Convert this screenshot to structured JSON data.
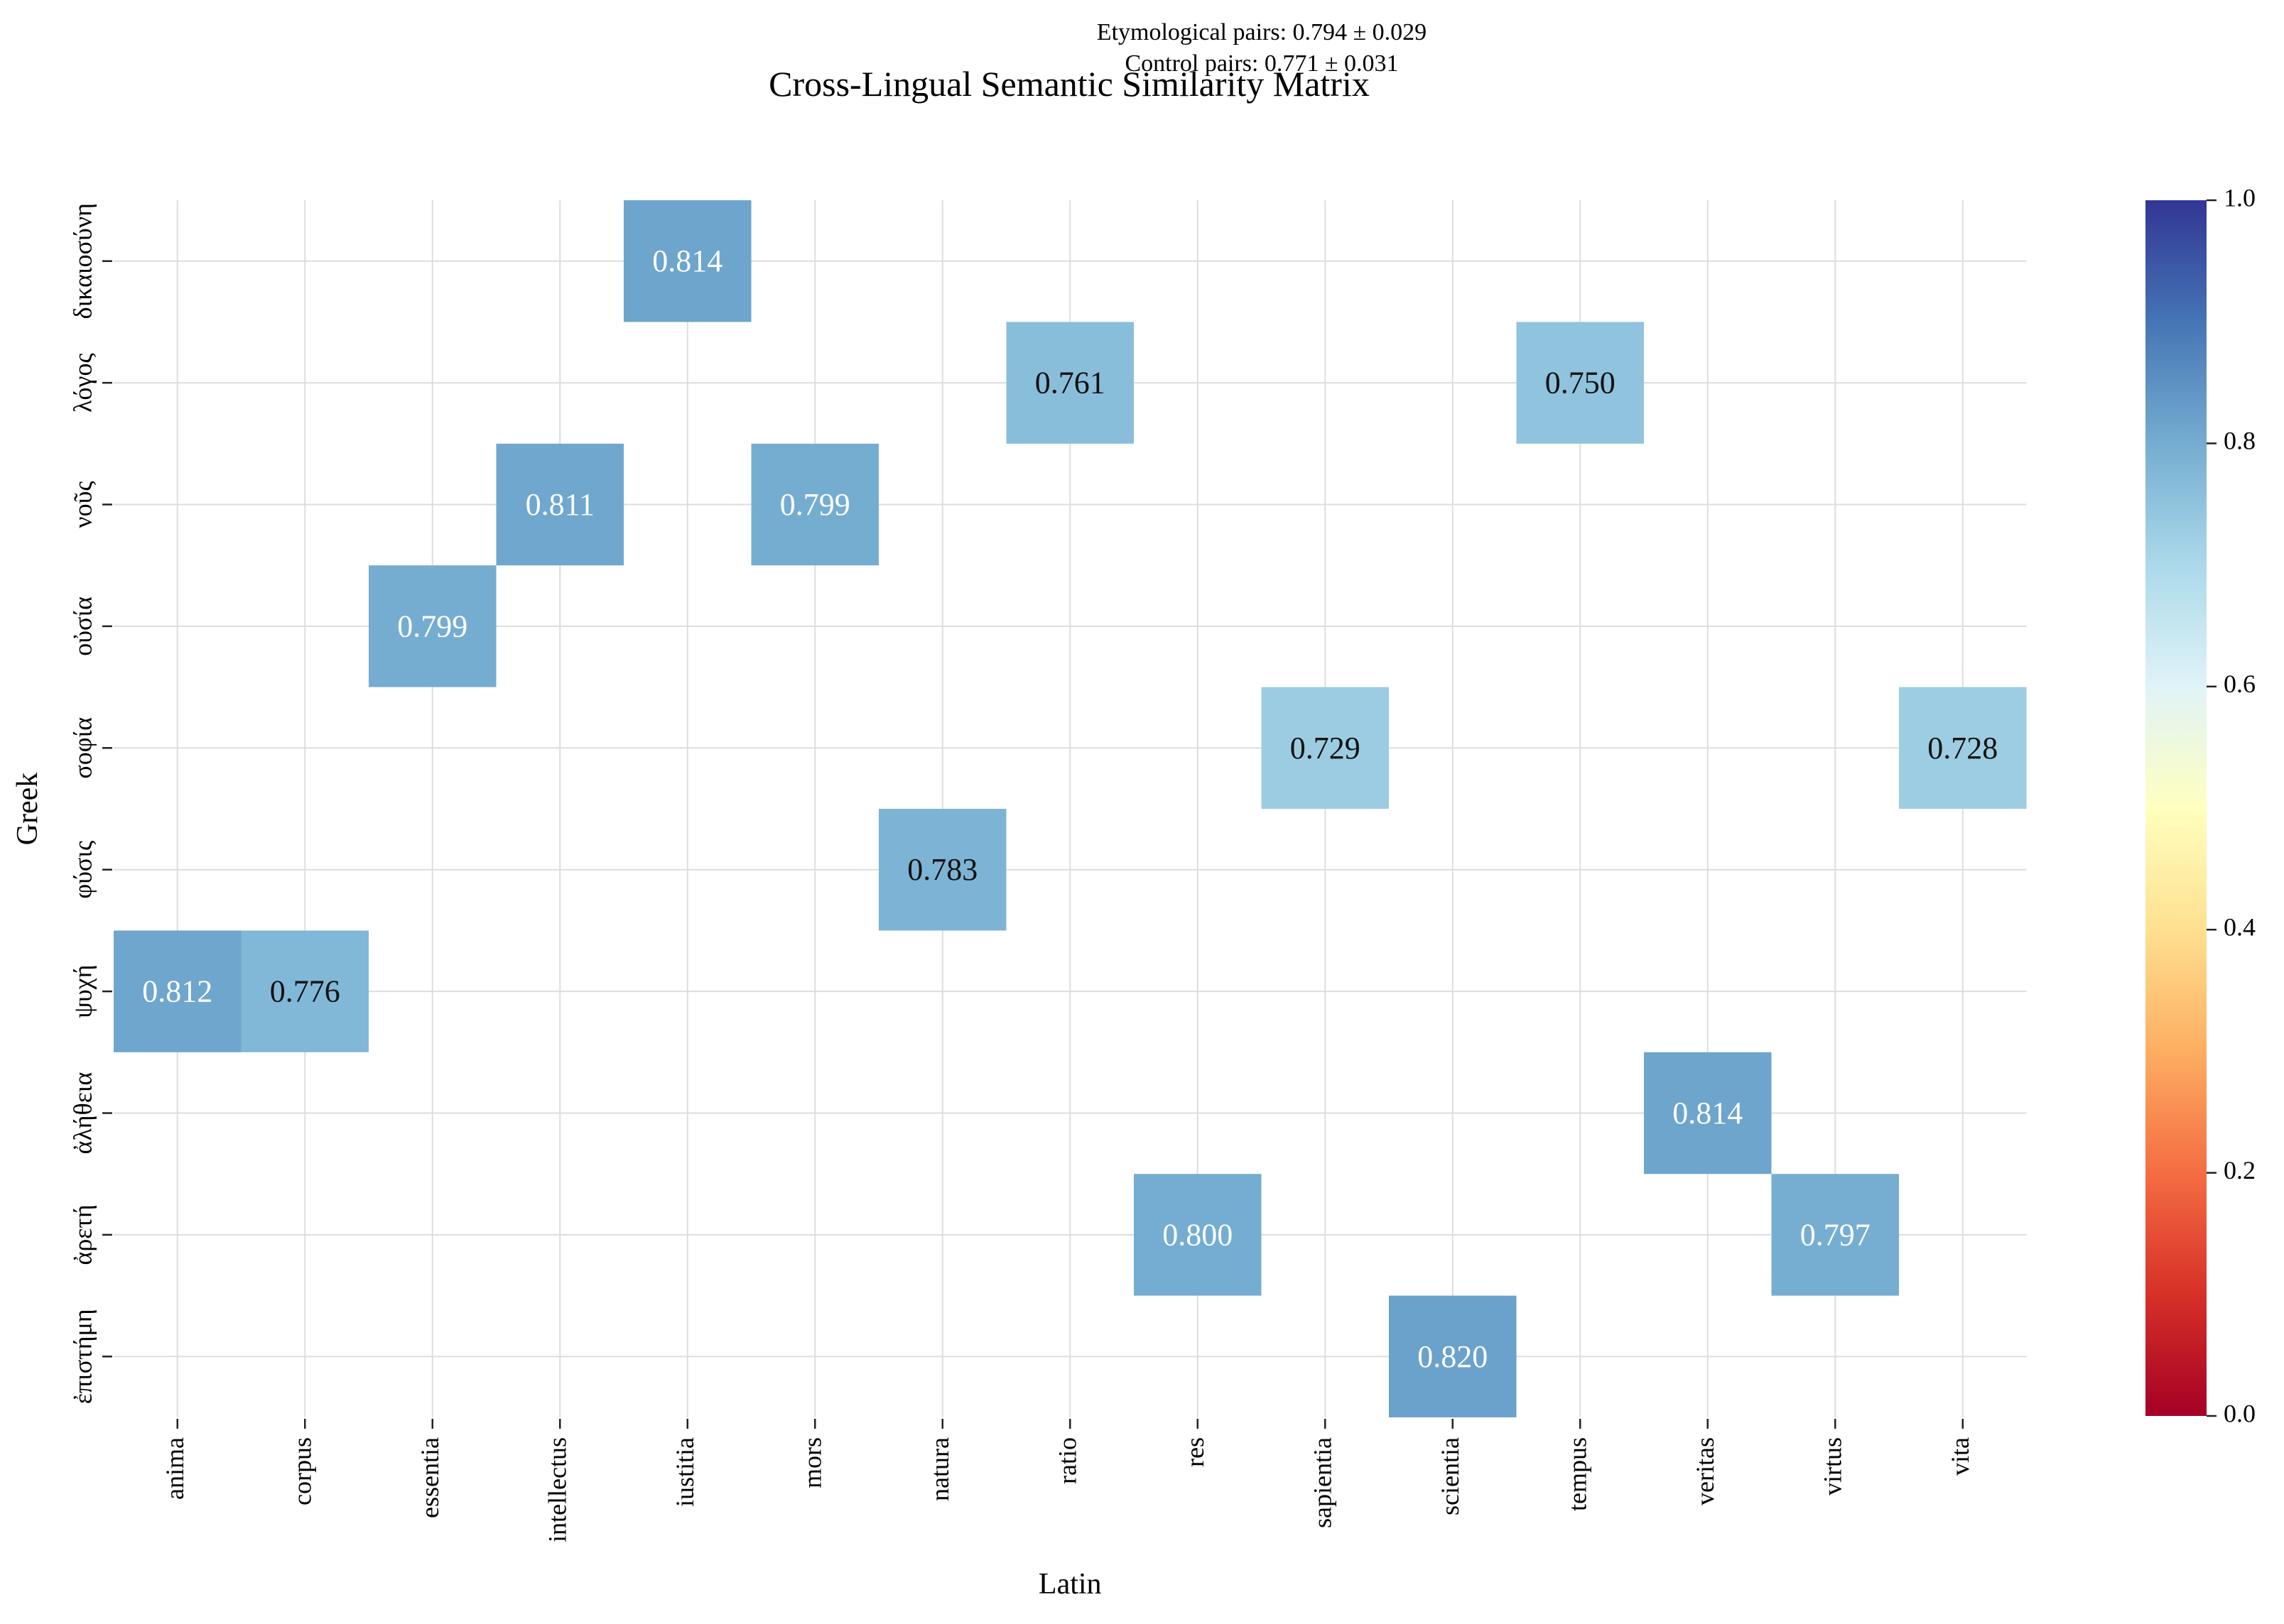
{
  "chart_data": {
    "type": "heatmap",
    "title": "Cross-Lingual Semantic Similarity Matrix",
    "annotations": [
      "Etymological pairs: 0.794 ± 0.029",
      "Control pairs: 0.771 ± 0.031"
    ],
    "xlabel": "Latin",
    "ylabel": "Greek",
    "x_categories": [
      "anima",
      "corpus",
      "essentia",
      "intellectus",
      "iustitia",
      "mors",
      "natura",
      "ratio",
      "res",
      "sapientia",
      "scientia",
      "tempus",
      "veritas",
      "virtus",
      "vita"
    ],
    "y_categories": [
      "δικαιοσύνη",
      "λόγος",
      "νοῦς",
      "οὐσία",
      "σοφία",
      "φύσις",
      "ψυχή",
      "ἀλήθεια",
      "ἀρετή",
      "ἐπιστήμη"
    ],
    "cells": [
      {
        "x": "iustitia",
        "y": "δικαιοσύνη",
        "value": 0.814,
        "label": "0.814"
      },
      {
        "x": "ratio",
        "y": "λόγος",
        "value": 0.761,
        "label": "0.761"
      },
      {
        "x": "tempus",
        "y": "λόγος",
        "value": 0.75,
        "label": "0.750"
      },
      {
        "x": "intellectus",
        "y": "νοῦς",
        "value": 0.811,
        "label": "0.811"
      },
      {
        "x": "mors",
        "y": "νοῦς",
        "value": 0.799,
        "label": "0.799"
      },
      {
        "x": "essentia",
        "y": "οὐσία",
        "value": 0.799,
        "label": "0.799"
      },
      {
        "x": "sapientia",
        "y": "σοφία",
        "value": 0.729,
        "label": "0.729"
      },
      {
        "x": "vita",
        "y": "σοφία",
        "value": 0.728,
        "label": "0.728"
      },
      {
        "x": "natura",
        "y": "φύσις",
        "value": 0.783,
        "label": "0.783"
      },
      {
        "x": "anima",
        "y": "ψυχή",
        "value": 0.812,
        "label": "0.812"
      },
      {
        "x": "corpus",
        "y": "ψυχή",
        "value": 0.776,
        "label": "0.776"
      },
      {
        "x": "veritas",
        "y": "ἀλήθεια",
        "value": 0.814,
        "label": "0.814"
      },
      {
        "x": "res",
        "y": "ἀρετή",
        "value": 0.8,
        "label": "0.800"
      },
      {
        "x": "virtus",
        "y": "ἀρετή",
        "value": 0.797,
        "label": "0.797"
      },
      {
        "x": "scientia",
        "y": "ἐπιστήμη",
        "value": 0.82,
        "label": "0.820"
      }
    ],
    "colormap": "RdYlBu",
    "vmin": 0.0,
    "vmax": 1.0,
    "colorbar_ticks": [
      "0.0",
      "0.2",
      "0.4",
      "0.6",
      "0.8",
      "1.0"
    ],
    "grid": true
  }
}
